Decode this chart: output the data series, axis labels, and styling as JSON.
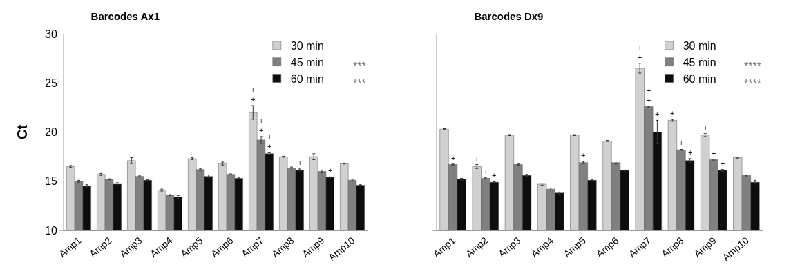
{
  "chart_data": [
    {
      "type": "bar",
      "title": "Barcodes Ax1",
      "ylabel": "Ct",
      "categories": [
        "Amp1",
        "Amp2",
        "Amp3",
        "Amp4",
        "Amp5",
        "Amp6",
        "Amp7",
        "Amp8",
        "Amp9",
        "Amp10"
      ],
      "series": [
        {
          "name": "30 min",
          "color": "#d0d0d0",
          "values": [
            16.5,
            15.7,
            17.1,
            14.1,
            17.3,
            16.8,
            22.0,
            17.5,
            17.5,
            16.8
          ],
          "errors": [
            0.1,
            0.1,
            0.3,
            0.1,
            0.1,
            0.15,
            0.7,
            0.05,
            0.3,
            0.05
          ],
          "value_labels": [
            null,
            null,
            null,
            null,
            null,
            null,
            "+\n+",
            null,
            null,
            null
          ]
        },
        {
          "name": "45 min",
          "color": "#808080",
          "values": [
            15.0,
            15.2,
            15.5,
            13.6,
            16.2,
            15.7,
            19.2,
            16.3,
            16.0,
            15.1
          ],
          "errors": [
            0.1,
            0.05,
            0.05,
            0.05,
            0.1,
            0.05,
            0.35,
            0.15,
            0.15,
            0.1
          ],
          "value_labels": [
            null,
            null,
            null,
            null,
            null,
            null,
            "+\n+",
            null,
            null,
            null
          ]
        },
        {
          "name": "60 min",
          "color": "#0d0d0d",
          "values": [
            14.5,
            14.7,
            15.1,
            13.4,
            15.5,
            15.3,
            17.8,
            16.1,
            15.4,
            14.6
          ],
          "errors": [
            0.15,
            0.15,
            0.05,
            0.15,
            0.15,
            0.05,
            0.1,
            0.15,
            0.05,
            0.05
          ],
          "value_labels": [
            null,
            null,
            null,
            null,
            null,
            null,
            "+\n+",
            "+",
            "+",
            null
          ]
        }
      ],
      "ylim": [
        10,
        30
      ],
      "yticks": [
        10,
        15,
        20,
        25,
        30
      ],
      "grid": false,
      "legend": "top right",
      "annotations": [
        "***",
        "***"
      ]
    },
    {
      "type": "bar",
      "title": "Barcodes Dx9",
      "categories": [
        "Amp1",
        "Amp2",
        "Amp3",
        "Amp4",
        "Amp5",
        "Amp6",
        "Amp7",
        "Amp8",
        "Amp9",
        "Amp10"
      ],
      "series": [
        {
          "name": "30 min",
          "color": "#d0d0d0",
          "values": [
            20.3,
            16.5,
            19.7,
            14.7,
            19.7,
            19.1,
            26.5,
            21.2,
            19.7,
            17.4
          ],
          "errors": [
            0.05,
            0.2,
            0.05,
            0.1,
            0.05,
            0.05,
            0.5,
            0.1,
            0.15,
            0.05
          ],
          "value_labels": [
            null,
            "+",
            null,
            null,
            null,
            null,
            "+\n+",
            "+",
            "+",
            null
          ]
        },
        {
          "name": "45 min",
          "color": "#808080",
          "values": [
            16.7,
            15.3,
            16.7,
            14.2,
            16.9,
            16.9,
            22.6,
            18.2,
            17.2,
            15.6
          ],
          "errors": [
            0.05,
            0.05,
            0.05,
            0.1,
            0.1,
            0.15,
            0.05,
            0.05,
            0.05,
            0.05
          ],
          "value_labels": [
            "+",
            "+",
            null,
            null,
            "+",
            null,
            "+\n+",
            "+",
            "+",
            null
          ]
        },
        {
          "name": "60 min",
          "color": "#0d0d0d",
          "values": [
            15.2,
            14.9,
            15.6,
            13.8,
            15.1,
            16.1,
            20.0,
            17.1,
            16.1,
            14.9
          ],
          "errors": [
            0.1,
            0.05,
            0.1,
            0.1,
            0.05,
            0.05,
            1.2,
            0.2,
            0.1,
            0.2
          ],
          "value_labels": [
            null,
            "+",
            null,
            null,
            null,
            null,
            "+",
            "+",
            "+",
            null
          ]
        }
      ],
      "ylim": [
        10,
        30
      ],
      "yticks": [
        {
          "value": 10,
          "label": null
        },
        {
          "value": 15,
          "label": null
        },
        {
          "value": 20,
          "label": null
        },
        {
          "value": 25,
          "label": null
        },
        {
          "value": 30,
          "label": null
        }
      ],
      "tick_labels": "x",
      "grid": false,
      "legend": "top right",
      "annotations": [
        "****",
        "****"
      ]
    }
  ]
}
